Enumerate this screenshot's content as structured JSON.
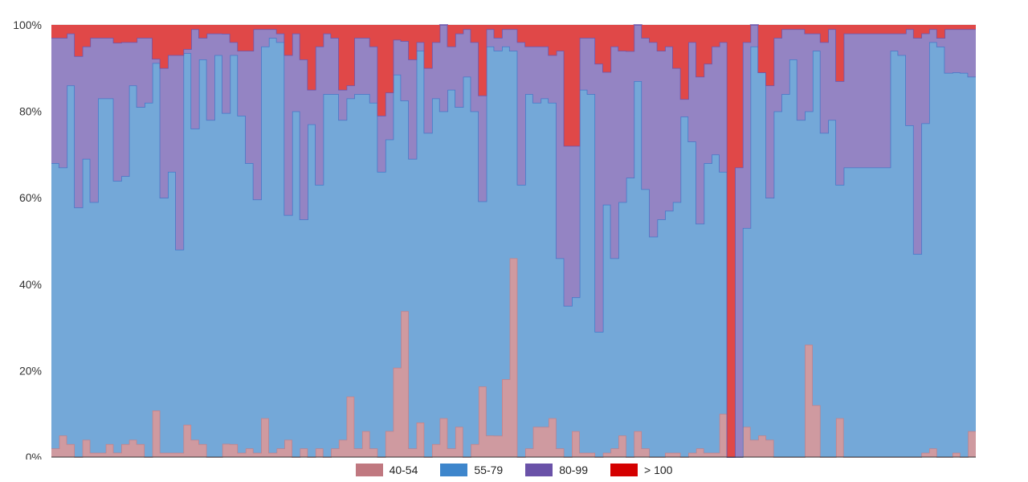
{
  "chart_data": {
    "type": "area",
    "stacked": true,
    "normalized_percent": true,
    "step": true,
    "grid": true,
    "legend_position": "bottom",
    "y_ticks": [
      "0%",
      "20%",
      "40%",
      "60%",
      "80%",
      "100%"
    ],
    "ylim": [
      0,
      100
    ],
    "series": [
      {
        "name": "40-54",
        "color": "#cf9aa0",
        "line": "#c48088",
        "values": [
          2,
          5,
          3,
          0,
          4,
          1,
          1,
          3,
          1,
          3,
          4,
          3,
          0,
          11,
          1,
          1,
          1,
          8,
          4,
          3,
          0,
          0,
          3,
          3,
          1,
          2,
          1,
          9,
          1,
          2,
          4,
          0,
          2,
          0,
          2,
          0,
          2,
          4,
          14,
          2,
          6,
          2,
          0,
          5,
          18,
          27,
          2,
          8,
          0,
          3,
          9,
          2,
          7,
          0,
          3,
          16,
          5,
          5,
          18,
          46,
          0,
          2,
          7,
          7,
          9,
          2,
          0,
          6,
          1,
          1,
          0,
          1,
          2,
          5,
          0,
          6,
          2,
          0,
          0,
          1,
          1,
          0,
          1,
          2,
          1,
          1,
          10,
          0,
          0,
          7,
          4,
          5,
          4,
          0,
          0,
          0,
          0,
          26,
          12,
          0,
          0,
          9,
          0,
          0,
          0,
          0,
          0,
          0,
          0,
          0,
          0,
          0,
          1,
          2,
          0,
          0,
          1,
          0,
          6
        ]
      },
      {
        "name": "55-79",
        "color": "#74a8d8",
        "line": "#4477c7",
        "values": [
          66,
          62,
          83,
          56,
          65,
          58,
          82,
          80,
          61,
          62,
          82,
          78,
          82,
          82,
          59,
          65,
          47,
          92,
          72,
          89,
          78,
          93,
          75,
          90,
          78,
          66,
          58,
          86,
          95,
          94,
          52,
          80,
          53,
          77,
          61,
          84,
          82,
          74,
          69,
          82,
          78,
          80,
          66,
          56,
          59,
          39,
          67,
          86,
          75,
          80,
          71,
          83,
          74,
          88,
          77,
          42,
          90,
          90,
          77,
          48,
          63,
          82,
          75,
          76,
          73,
          44,
          35,
          31,
          84,
          83,
          29,
          58,
          44,
          54,
          64,
          81,
          60,
          51,
          55,
          56,
          58,
          78,
          72,
          52,
          67,
          69,
          56,
          0,
          0,
          46,
          91,
          84,
          56,
          80,
          84,
          92,
          78,
          54,
          82,
          75,
          78,
          54,
          67,
          67,
          67,
          67,
          67,
          67,
          94,
          93,
          76,
          47,
          77,
          94,
          94,
          88,
          88,
          88,
          82
        ]
      },
      {
        "name": "80-99",
        "color": "#9484c3",
        "line": "#6b55ad",
        "values": [
          29,
          30,
          12,
          34,
          26,
          38,
          14,
          14,
          31,
          31,
          10,
          16,
          15,
          1,
          30,
          27,
          45,
          1,
          23,
          5,
          20,
          5,
          18,
          3,
          15,
          26,
          39,
          4,
          2,
          2,
          37,
          18,
          37,
          8,
          32,
          14,
          13,
          7,
          3,
          13,
          13,
          13,
          13,
          9,
          7,
          11,
          23,
          2,
          15,
          13,
          20,
          10,
          17,
          11,
          16,
          24,
          4,
          3,
          4,
          5,
          33,
          11,
          13,
          12,
          11,
          48,
          37,
          35,
          12,
          13,
          62,
          31,
          49,
          35,
          29,
          13,
          35,
          45,
          39,
          38,
          31,
          4,
          23,
          34,
          23,
          25,
          30,
          0,
          67,
          43,
          5,
          0,
          26,
          17,
          15,
          7,
          21,
          18,
          4,
          21,
          21,
          24,
          31,
          31,
          31,
          31,
          31,
          31,
          4,
          5,
          22,
          50,
          21,
          3,
          2,
          10,
          10,
          10,
          11
        ]
      },
      {
        "name": "> 100",
        "color": "#e04848",
        "line": "#b82020",
        "values": [
          3,
          3,
          2,
          7,
          5,
          3,
          3,
          3,
          4,
          4,
          4,
          3,
          3,
          8,
          10,
          7,
          7,
          6,
          1,
          3,
          2,
          2,
          2,
          4,
          6,
          6,
          1,
          1,
          1,
          2,
          7,
          2,
          8,
          15,
          5,
          2,
          3,
          15,
          14,
          3,
          3,
          5,
          21,
          13,
          3,
          3,
          8,
          4,
          10,
          4,
          0,
          5,
          2,
          1,
          4,
          16,
          1,
          3,
          1,
          1,
          4,
          5,
          5,
          5,
          7,
          6,
          28,
          28,
          3,
          3,
          9,
          11,
          5,
          6,
          6,
          0,
          3,
          4,
          6,
          5,
          10,
          17,
          4,
          12,
          9,
          5,
          4,
          100,
          33,
          4,
          0,
          11,
          14,
          3,
          1,
          1,
          1,
          2,
          2,
          4,
          1,
          13,
          2,
          2,
          2,
          2,
          2,
          2,
          2,
          2,
          1,
          3,
          2,
          1,
          3,
          1,
          1,
          1,
          1
        ]
      }
    ]
  }
}
